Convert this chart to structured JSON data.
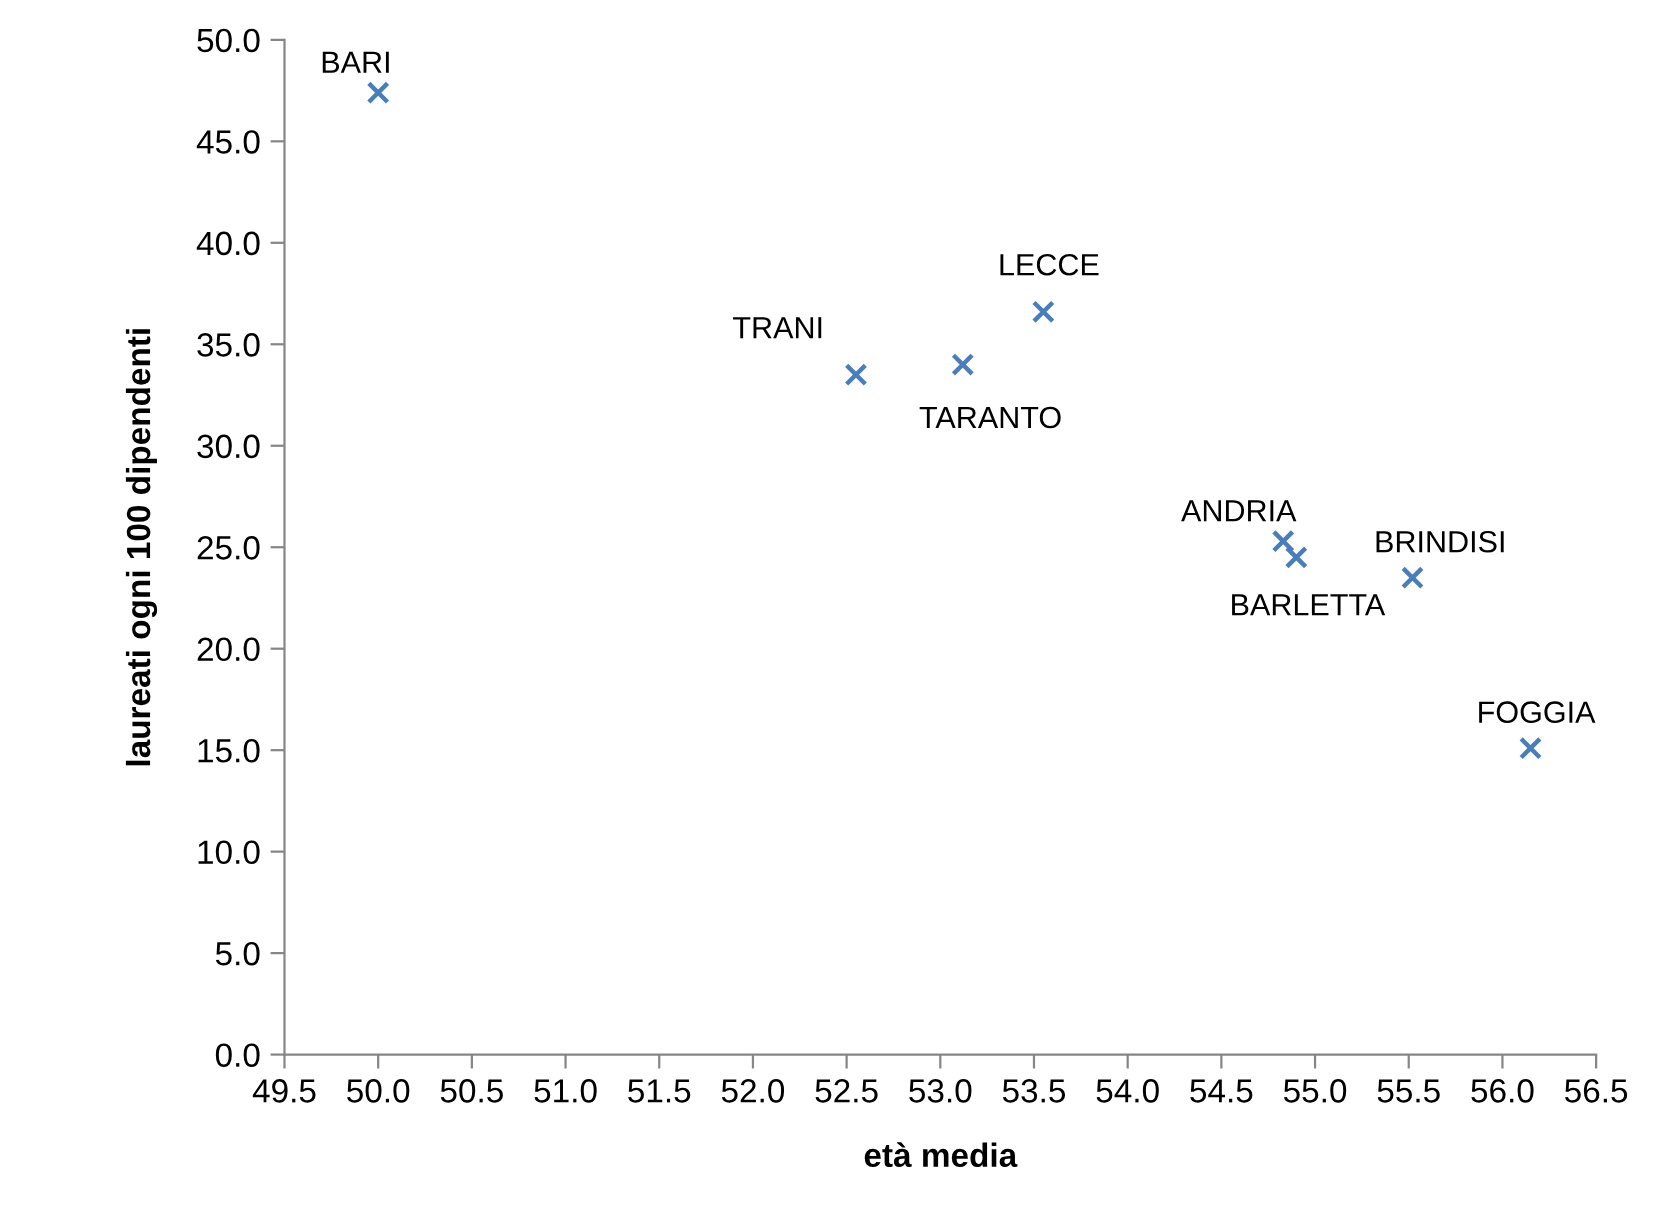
{
  "chart_data": {
    "type": "scatter",
    "xlabel": "età media",
    "ylabel": "laureati ogni 100 dipendenti",
    "series": [
      {
        "color": "#4a7ebb",
        "x": [
          50.0,
          52.55,
          53.12,
          53.55,
          54.83,
          54.9,
          55.52,
          56.15
        ],
        "values": [
          47.4,
          33.5,
          34.0,
          36.6,
          25.3,
          24.5,
          23.5,
          15.1
        ]
      }
    ],
    "annotations": [
      {
        "text": "BARI",
        "x": 50.0,
        "y": 47.4
      },
      {
        "text": "TRANI",
        "x": 52.55,
        "y": 33.5
      },
      {
        "text": "TARANTO",
        "x": 53.12,
        "y": 34.0
      },
      {
        "text": "LECCE",
        "x": 53.55,
        "y": 36.6
      },
      {
        "text": "ANDRIA",
        "x": 54.83,
        "y": 25.3
      },
      {
        "text": "BARLETTA",
        "x": 54.9,
        "y": 24.5
      },
      {
        "text": "BRINDISI",
        "x": 55.52,
        "y": 23.5
      },
      {
        "text": "FOGGIA",
        "x": 56.15,
        "y": 15.1
      }
    ],
    "marker": "cross",
    "grid": false,
    "legend": false,
    "xlim": [
      49.5,
      56.5
    ],
    "xticks": [
      {
        "value": 49.5,
        "label": "49.5"
      },
      {
        "value": 50.0,
        "label": "50.0"
      },
      {
        "value": 50.5,
        "label": "50.5"
      },
      {
        "value": 51.0,
        "label": "51.0"
      },
      {
        "value": 51.5,
        "label": "51.5"
      },
      {
        "value": 52.0,
        "label": "52.0"
      },
      {
        "value": 52.5,
        "label": "52.5"
      },
      {
        "value": 53.0,
        "label": "53.0"
      },
      {
        "value": 53.5,
        "label": "53.5"
      },
      {
        "value": 54.0,
        "label": "54.0"
      },
      {
        "value": 54.5,
        "label": "54.5"
      },
      {
        "value": 55.0,
        "label": "55.0"
      },
      {
        "value": 55.5,
        "label": "55.5"
      },
      {
        "value": 56.0,
        "label": "56.0"
      },
      {
        "value": 56.5,
        "label": "56.5"
      }
    ],
    "ylim": [
      0,
      50
    ],
    "yticks": [
      {
        "value": 0,
        "label": "0.0"
      },
      {
        "value": 5,
        "label": "5.0"
      },
      {
        "value": 10,
        "label": "10.0"
      },
      {
        "value": 15,
        "label": "15.0"
      },
      {
        "value": 20,
        "label": "20.0"
      },
      {
        "value": 25,
        "label": "25.0"
      },
      {
        "value": 30,
        "label": "30.0"
      },
      {
        "value": 35,
        "label": "35.0"
      },
      {
        "value": 40,
        "label": "40.0"
      },
      {
        "value": 45,
        "label": "45.0"
      },
      {
        "value": 50,
        "label": "50.0"
      }
    ]
  }
}
